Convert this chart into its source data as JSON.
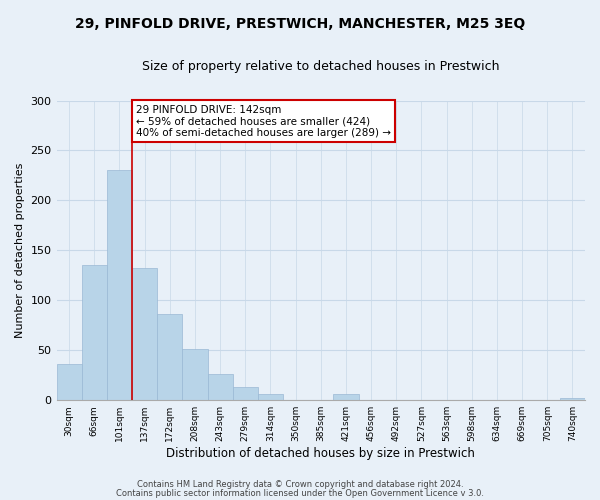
{
  "title": "29, PINFOLD DRIVE, PRESTWICH, MANCHESTER, M25 3EQ",
  "subtitle": "Size of property relative to detached houses in Prestwich",
  "xlabel": "Distribution of detached houses by size in Prestwich",
  "ylabel": "Number of detached properties",
  "footer_line1": "Contains HM Land Registry data © Crown copyright and database right 2024.",
  "footer_line2": "Contains public sector information licensed under the Open Government Licence v 3.0.",
  "bin_labels": [
    "30sqm",
    "66sqm",
    "101sqm",
    "137sqm",
    "172sqm",
    "208sqm",
    "243sqm",
    "279sqm",
    "314sqm",
    "350sqm",
    "385sqm",
    "421sqm",
    "456sqm",
    "492sqm",
    "527sqm",
    "563sqm",
    "598sqm",
    "634sqm",
    "669sqm",
    "705sqm",
    "740sqm"
  ],
  "bar_heights": [
    36,
    135,
    230,
    132,
    86,
    51,
    26,
    13,
    6,
    0,
    0,
    6,
    0,
    0,
    0,
    0,
    0,
    0,
    0,
    0,
    2
  ],
  "bar_color": "#b8d4e8",
  "bar_edge_color": "#9ab8d4",
  "vline_x_index": 3,
  "vline_color": "#cc0000",
  "annotation_text": "29 PINFOLD DRIVE: 142sqm\n← 59% of detached houses are smaller (424)\n40% of semi-detached houses are larger (289) →",
  "annotation_box_facecolor": "#ffffff",
  "annotation_box_edgecolor": "#cc0000",
  "ylim": [
    0,
    300
  ],
  "yticks": [
    0,
    50,
    100,
    150,
    200,
    250,
    300
  ],
  "grid_color": "#c8d8e8",
  "background_color": "#e8f0f8",
  "title_fontsize": 10,
  "subtitle_fontsize": 9
}
